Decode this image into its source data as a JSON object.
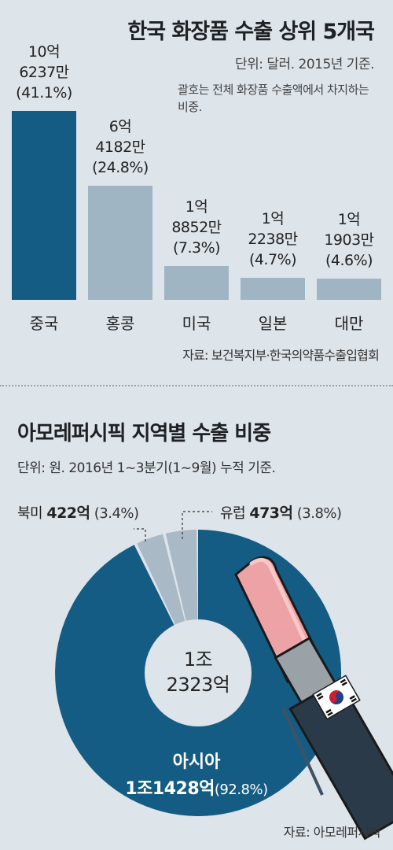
{
  "chart_data": [
    {
      "type": "bar",
      "title": "한국 화장품 수출 상위 5개국",
      "unit": "단위: 달러. 2015년 기준.",
      "note": "괄호는 전체 화장품 수출액에서\n차지하는 비중.",
      "source": "자료: 보건복지부·한국의약품수출입협회",
      "categories": [
        "중국",
        "홍콩",
        "미국",
        "일본",
        "대만"
      ],
      "values": [
        1062370000,
        641820000,
        188520000,
        122380000,
        119030000
      ],
      "value_labels": [
        "10억\n6237만\n(41.1%)",
        "6억\n4182만\n(24.8%)",
        "1억\n8852만\n(7.3%)",
        "1억\n2238만\n(4.7%)",
        "1억\n1903만\n(4.6%)"
      ],
      "percents": [
        41.1,
        24.8,
        7.3,
        4.7,
        4.6
      ],
      "colors": [
        "#155c84",
        "#9fb5c4",
        "#9fb5c4",
        "#9fb5c4",
        "#9fb5c4"
      ]
    },
    {
      "type": "pie",
      "title": "아모레퍼시픽 지역별 수출 비중",
      "unit": "단위: 원. 2016년 1~3분기(1~9월) 누적 기준.",
      "source": "자료: 아모레퍼시픽",
      "total": "1조\n2323억",
      "slices": [
        {
          "name": "아시아",
          "value": "1조1428억",
          "pct_text": "(92.8%)",
          "percent": 92.8,
          "color": "#155c84"
        },
        {
          "name": "북미",
          "value": "422억",
          "pct_text": "(3.4%)",
          "percent": 3.4,
          "color": "#aab9c6"
        },
        {
          "name": "유럽",
          "value": "473억",
          "pct_text": "(3.8%)",
          "percent": 3.8,
          "color": "#aab9c6"
        }
      ]
    }
  ]
}
